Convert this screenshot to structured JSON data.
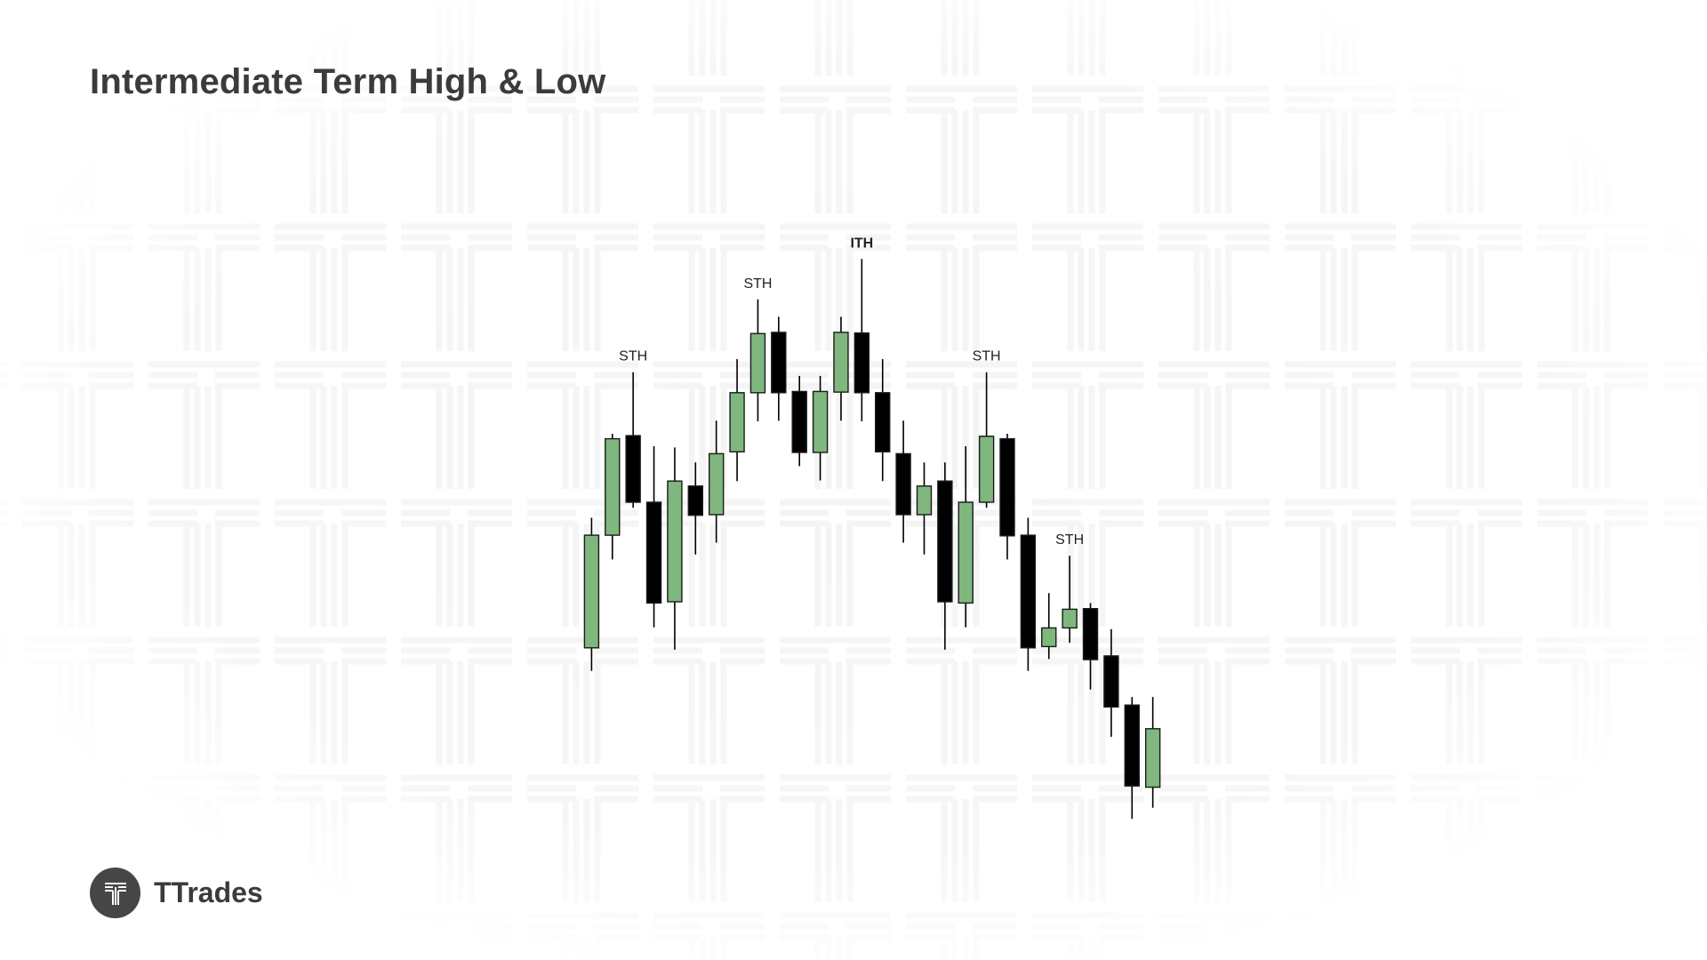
{
  "title": "Intermediate Term High & Low",
  "brand": {
    "name": "TTrades",
    "logo_icon": "ttrades-t-logo-icon"
  },
  "colors": {
    "bullish": "#7fb77e",
    "bearish": "#000000",
    "wick": "#000000",
    "text": "#3b3b3b",
    "watermark": "#f3f3f3"
  },
  "chart_data": {
    "type": "candlestick",
    "title": "",
    "xlabel": "",
    "ylabel": "",
    "axes_visible": false,
    "grid": false,
    "ylim": [
      0,
      100
    ],
    "candles": [
      {
        "o": 31.6,
        "h": 52.5,
        "l": 27.9,
        "c": 49.7
      },
      {
        "o": 49.7,
        "h": 66.0,
        "l": 45.8,
        "c": 65.2
      },
      {
        "o": 65.7,
        "h": 75.9,
        "l": 54.1,
        "c": 55.0
      },
      {
        "o": 55.0,
        "h": 64.0,
        "l": 34.9,
        "c": 38.8
      },
      {
        "o": 39.0,
        "h": 63.8,
        "l": 31.3,
        "c": 58.4
      },
      {
        "o": 57.6,
        "h": 61.4,
        "l": 46.6,
        "c": 52.9
      },
      {
        "o": 53.0,
        "h": 68.1,
        "l": 48.5,
        "c": 62.8
      },
      {
        "o": 63.1,
        "h": 78.0,
        "l": 58.4,
        "c": 72.6
      },
      {
        "o": 72.6,
        "h": 87.6,
        "l": 68.0,
        "c": 82.1
      },
      {
        "o": 82.3,
        "h": 84.8,
        "l": 68.1,
        "c": 72.6
      },
      {
        "o": 72.8,
        "h": 75.3,
        "l": 60.8,
        "c": 63.0
      },
      {
        "o": 63.0,
        "h": 75.3,
        "l": 58.5,
        "c": 72.8
      },
      {
        "o": 72.7,
        "h": 84.8,
        "l": 68.1,
        "c": 82.3
      },
      {
        "o": 82.2,
        "h": 94.1,
        "l": 68.0,
        "c": 72.6
      },
      {
        "o": 72.6,
        "h": 78.0,
        "l": 58.4,
        "c": 63.1
      },
      {
        "o": 62.8,
        "h": 68.1,
        "l": 48.5,
        "c": 53.0
      },
      {
        "o": 53.0,
        "h": 61.4,
        "l": 46.6,
        "c": 57.6
      },
      {
        "o": 58.4,
        "h": 61.4,
        "l": 31.3,
        "c": 39.0
      },
      {
        "o": 38.8,
        "h": 64.0,
        "l": 34.9,
        "c": 55.0
      },
      {
        "o": 55.0,
        "h": 75.9,
        "l": 54.1,
        "c": 65.6
      },
      {
        "o": 65.2,
        "h": 66.0,
        "l": 45.8,
        "c": 49.6
      },
      {
        "o": 49.7,
        "h": 52.5,
        "l": 27.9,
        "c": 31.6
      },
      {
        "o": 31.8,
        "h": 40.4,
        "l": 29.8,
        "c": 34.8
      },
      {
        "o": 34.8,
        "h": 46.4,
        "l": 32.4,
        "c": 37.8
      },
      {
        "o": 37.9,
        "h": 38.8,
        "l": 24.9,
        "c": 29.7
      },
      {
        "o": 30.3,
        "h": 34.6,
        "l": 17.3,
        "c": 22.1
      },
      {
        "o": 22.4,
        "h": 23.7,
        "l": 4.1,
        "c": 9.4
      },
      {
        "o": 9.2,
        "h": 23.7,
        "l": 5.9,
        "c": 18.6
      }
    ],
    "annotations": [
      {
        "text": "STH",
        "candle": 3,
        "bold": false
      },
      {
        "text": "STH",
        "candle": 9,
        "bold": false
      },
      {
        "text": "ITH",
        "candle": 14,
        "bold": true
      },
      {
        "text": "STH",
        "candle": 20,
        "bold": false
      },
      {
        "text": "STH",
        "candle": 24,
        "bold": false
      }
    ]
  }
}
